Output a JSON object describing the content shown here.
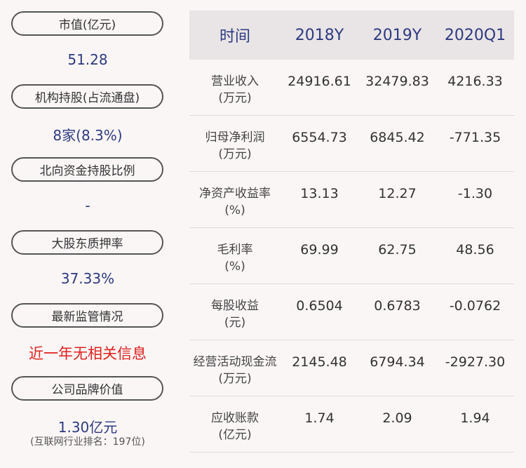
{
  "left_panel": {
    "items": [
      {
        "label": "市值(亿元)",
        "value": "51.28"
      },
      {
        "label": "机构持股(占流通盘)",
        "value": "8家(8.3%)"
      },
      {
        "label": "北向资金持股比例",
        "value": "-"
      },
      {
        "label": "大股东质押率",
        "value": "37.33%"
      },
      {
        "label": "最新监管情况",
        "value": "近一年无相关信息",
        "value_color": "#e0211d"
      },
      {
        "label": "公司品牌价值",
        "value": "1.30亿元",
        "sub": "(互联网行业排名：197位)"
      }
    ]
  },
  "table": {
    "headers": [
      "时间",
      "2018Y",
      "2019Y",
      "2020Q1"
    ],
    "rows": [
      {
        "name": "营业收入",
        "unit": "(万元)",
        "values": [
          "24916.61",
          "32479.83",
          "4216.33"
        ]
      },
      {
        "name": "归母净利润",
        "unit": "(万元)",
        "values": [
          "6554.73",
          "6845.42",
          "-771.35"
        ]
      },
      {
        "name": "净资产收益率",
        "unit": "(%)",
        "values": [
          "13.13",
          "12.27",
          "-1.30"
        ]
      },
      {
        "name": "毛利率",
        "unit": "(%)",
        "values": [
          "69.99",
          "62.75",
          "48.56"
        ]
      },
      {
        "name": "每股收益",
        "unit": "(元)",
        "values": [
          "0.6504",
          "0.6783",
          "-0.0762"
        ]
      },
      {
        "name": "经营活动现金流",
        "unit": "(万元)",
        "values": [
          "2145.48",
          "6794.34",
          "-2927.30"
        ]
      },
      {
        "name": "应收账款",
        "unit": "(亿元)",
        "values": [
          "1.74",
          "2.09",
          "1.94"
        ]
      }
    ]
  },
  "colors": {
    "background": "#faf6f6",
    "header_bg": "#e9e5e6",
    "accent_blue": "#2e3a80",
    "alert_red": "#e0211d"
  }
}
